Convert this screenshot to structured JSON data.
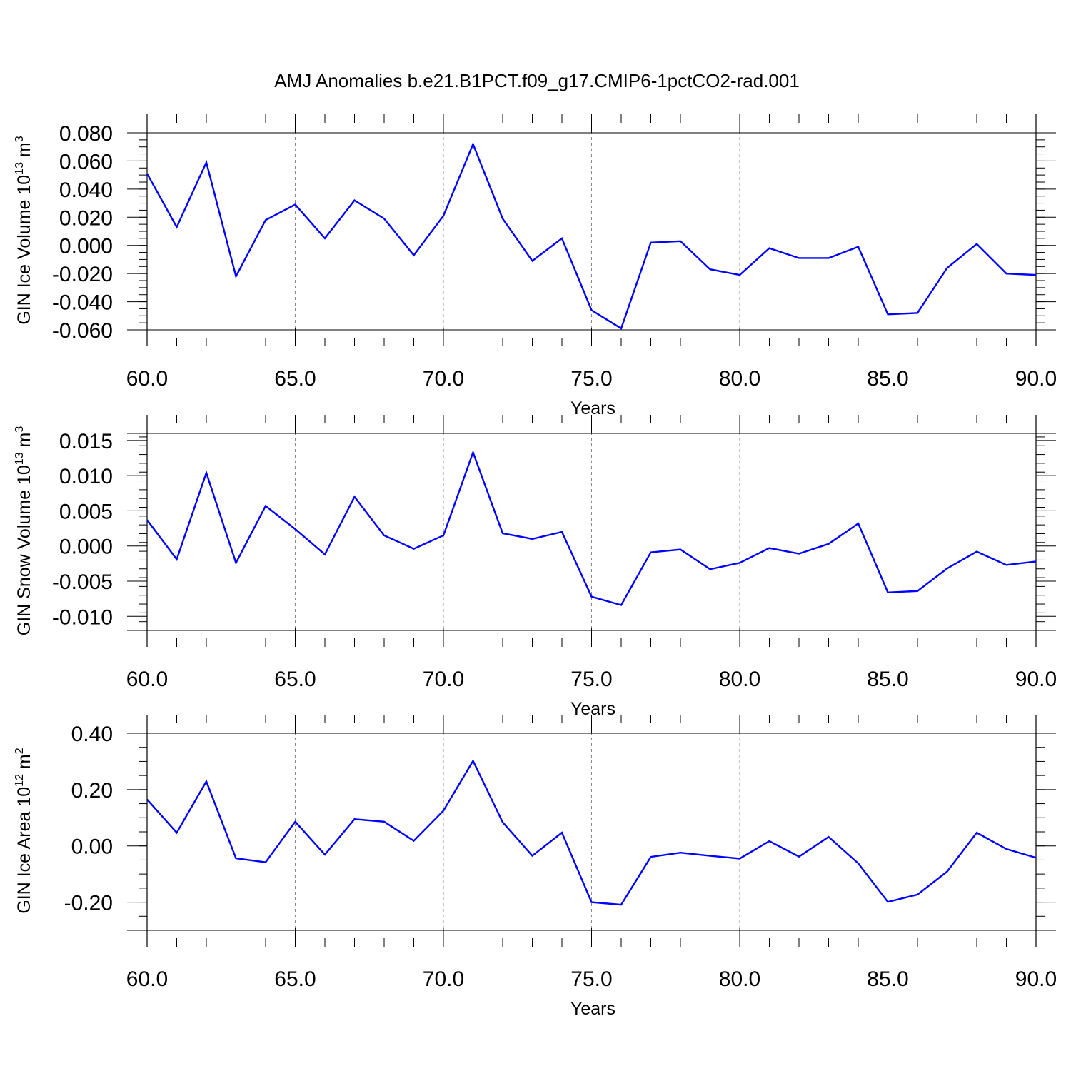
{
  "chart_data": [
    {
      "type": "line",
      "title": "AMJ Anomalies b.e21.B1PCT.f09_g17.CMIP6-1pctCO2-rad.001",
      "xlabel": "Years",
      "ylabel": {
        "prefix": "GIN Ice Volume 10",
        "exponent": "13",
        "unit": " m",
        "unit_exponent": "3"
      },
      "xlim": [
        60,
        90
      ],
      "ylim": [
        -0.06,
        0.08
      ],
      "xticks": [
        "60.0",
        "65.0",
        "70.0",
        "75.0",
        "80.0",
        "85.0",
        "90.0"
      ],
      "yticks": [
        "0.080",
        "0.060",
        "0.040",
        "0.020",
        "0.000",
        "-0.020",
        "-0.040",
        "-0.060"
      ],
      "grid": "vertical dashed at major x ticks",
      "line_color": "#0000ff",
      "x": [
        60,
        61,
        62,
        63,
        64,
        65,
        66,
        67,
        68,
        69,
        70,
        71,
        72,
        73,
        74,
        75,
        76,
        77,
        78,
        79,
        80,
        81,
        82,
        83,
        84,
        85,
        86,
        87,
        88,
        89,
        90
      ],
      "values": [
        0.051,
        0.013,
        0.059,
        -0.022,
        0.018,
        0.029,
        0.005,
        0.032,
        0.019,
        -0.007,
        0.021,
        0.072,
        0.019,
        -0.011,
        0.005,
        -0.046,
        -0.059,
        0.002,
        0.003,
        -0.017,
        -0.021,
        -0.002,
        -0.009,
        -0.009,
        -0.001,
        -0.049,
        -0.048,
        -0.016,
        0.001,
        -0.02,
        -0.021
      ]
    },
    {
      "type": "line",
      "xlabel": "Years",
      "ylabel": {
        "prefix": "GIN Snow Volume 10",
        "exponent": "13",
        "unit": " m",
        "unit_exponent": "3"
      },
      "xlim": [
        60,
        90
      ],
      "ylim": [
        -0.012,
        0.016
      ],
      "xticks": [
        "60.0",
        "65.0",
        "70.0",
        "75.0",
        "80.0",
        "85.0",
        "90.0"
      ],
      "yticks": [
        "0.015",
        "0.010",
        "0.005",
        "0.000",
        "-0.005",
        "-0.010"
      ],
      "grid": "vertical dashed at major x ticks",
      "line_color": "#0000ff",
      "x": [
        60,
        61,
        62,
        63,
        64,
        65,
        66,
        67,
        68,
        69,
        70,
        71,
        72,
        73,
        74,
        75,
        76,
        77,
        78,
        79,
        80,
        81,
        82,
        83,
        84,
        85,
        86,
        87,
        88,
        89,
        90
      ],
      "values": [
        0.0037,
        -0.0019,
        0.0104,
        -0.0024,
        0.0057,
        0.0024,
        -0.0012,
        0.007,
        0.0015,
        -0.0004,
        0.0015,
        0.0133,
        0.0018,
        0.001,
        0.002,
        -0.0072,
        -0.0084,
        -0.0009,
        -0.0005,
        -0.0033,
        -0.0024,
        -0.0003,
        -0.0011,
        0.0003,
        0.0032,
        -0.0066,
        -0.0064,
        -0.0032,
        -0.0008,
        -0.0027,
        -0.0022
      ]
    },
    {
      "type": "line",
      "xlabel": "Years",
      "ylabel": {
        "prefix": "GIN Ice Area 10",
        "exponent": "12",
        "unit": " m",
        "unit_exponent": "2"
      },
      "xlim": [
        60,
        90
      ],
      "ylim": [
        -0.3,
        0.4
      ],
      "xticks": [
        "60.0",
        "65.0",
        "70.0",
        "75.0",
        "80.0",
        "85.0",
        "90.0"
      ],
      "yticks": [
        "0.40",
        "0.20",
        "0.00",
        "-0.20"
      ],
      "grid": "vertical dashed at major x ticks",
      "line_color": "#0000ff",
      "x": [
        60,
        61,
        62,
        63,
        64,
        65,
        66,
        67,
        68,
        69,
        70,
        71,
        72,
        73,
        74,
        75,
        76,
        77,
        78,
        79,
        80,
        81,
        82,
        83,
        84,
        85,
        86,
        87,
        88,
        89,
        90
      ],
      "values": [
        0.165,
        0.047,
        0.229,
        -0.044,
        -0.058,
        0.086,
        -0.031,
        0.095,
        0.086,
        0.018,
        0.125,
        0.302,
        0.084,
        -0.035,
        0.047,
        -0.2,
        -0.209,
        -0.039,
        -0.024,
        -0.035,
        -0.045,
        0.017,
        -0.038,
        0.032,
        -0.062,
        -0.199,
        -0.173,
        -0.091,
        0.047,
        -0.011,
        -0.042
      ]
    }
  ]
}
